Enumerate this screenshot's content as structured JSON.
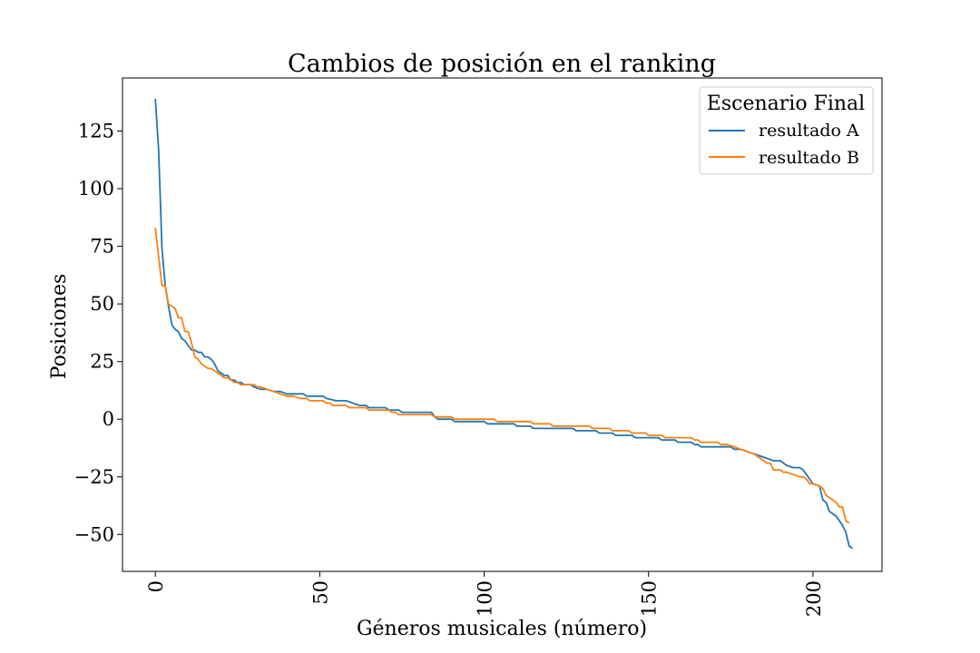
{
  "chart_data": {
    "type": "line",
    "title": "Cambios de posición en el ranking",
    "xlabel": "Géneros musicales (número)",
    "ylabel": "Posiciones",
    "xlim": [
      -10,
      221
    ],
    "ylim": [
      -66,
      148
    ],
    "xticks": [
      0,
      50,
      100,
      150,
      200
    ],
    "yticks": [
      125,
      100,
      75,
      50,
      25,
      0,
      -25,
      -50
    ],
    "x_tick_labels": [
      "0",
      "50",
      "100",
      "150",
      "200"
    ],
    "y_tick_labels": [
      "125",
      "100",
      "75",
      "50",
      "25",
      "0",
      "−25",
      "−50"
    ],
    "grid": false,
    "legend": {
      "title": "Escenario Final",
      "location": "top-right",
      "entries": [
        "resultado A",
        "resultado B"
      ]
    },
    "series": [
      {
        "name": "resultado A",
        "color": "#1f77b4",
        "points": [
          [
            0,
            139
          ],
          [
            1,
            116
          ],
          [
            2,
            74
          ],
          [
            3,
            58
          ],
          [
            4,
            49
          ],
          [
            5,
            41
          ],
          [
            6,
            39
          ],
          [
            7,
            38
          ],
          [
            8,
            35
          ],
          [
            9,
            34
          ],
          [
            10,
            32
          ],
          [
            11,
            30
          ],
          [
            12,
            30
          ],
          [
            13,
            29
          ],
          [
            14,
            29
          ],
          [
            15,
            27
          ],
          [
            16,
            27
          ],
          [
            17,
            26
          ],
          [
            18,
            24
          ],
          [
            19,
            21
          ],
          [
            20,
            20
          ],
          [
            21,
            19
          ],
          [
            22,
            19
          ],
          [
            23,
            17
          ],
          [
            24,
            17
          ],
          [
            25,
            16
          ],
          [
            26,
            16
          ],
          [
            27,
            15
          ],
          [
            28,
            15
          ],
          [
            29,
            15
          ],
          [
            30,
            14
          ],
          [
            32,
            13
          ],
          [
            34,
            13
          ],
          [
            36,
            12
          ],
          [
            38,
            12
          ],
          [
            40,
            11
          ],
          [
            45,
            11
          ],
          [
            46,
            10
          ],
          [
            50,
            10
          ],
          [
            51,
            10
          ],
          [
            52,
            9
          ],
          [
            55,
            8
          ],
          [
            57,
            8
          ],
          [
            58,
            8
          ],
          [
            60,
            7
          ],
          [
            62,
            6
          ],
          [
            64,
            6
          ],
          [
            65,
            5
          ],
          [
            70,
            5
          ],
          [
            71,
            4
          ],
          [
            74,
            4
          ],
          [
            75,
            3
          ],
          [
            84,
            3
          ],
          [
            85,
            1
          ],
          [
            86,
            0
          ],
          [
            90,
            0
          ],
          [
            91,
            -1
          ],
          [
            100,
            -1
          ],
          [
            101,
            -2
          ],
          [
            109,
            -2
          ],
          [
            110,
            -3
          ],
          [
            114,
            -3
          ],
          [
            115,
            -4
          ],
          [
            127,
            -4
          ],
          [
            128,
            -5
          ],
          [
            134,
            -5
          ],
          [
            135,
            -6
          ],
          [
            139,
            -6
          ],
          [
            140,
            -7
          ],
          [
            145,
            -7
          ],
          [
            146,
            -8
          ],
          [
            153,
            -8
          ],
          [
            154,
            -9
          ],
          [
            158,
            -9
          ],
          [
            159,
            -10
          ],
          [
            163,
            -10
          ],
          [
            164,
            -11
          ],
          [
            165,
            -11
          ],
          [
            166,
            -12
          ],
          [
            175,
            -12
          ],
          [
            176,
            -13
          ],
          [
            178,
            -13
          ],
          [
            180,
            -14
          ],
          [
            182,
            -15
          ],
          [
            184,
            -16
          ],
          [
            186,
            -17
          ],
          [
            188,
            -18
          ],
          [
            190,
            -18
          ],
          [
            191,
            -19
          ],
          [
            192,
            -20
          ],
          [
            194,
            -21
          ],
          [
            196,
            -21
          ],
          [
            197,
            -22
          ],
          [
            198,
            -24
          ],
          [
            200,
            -28
          ],
          [
            202,
            -29
          ],
          [
            203,
            -35
          ],
          [
            204,
            -36
          ],
          [
            205,
            -40
          ],
          [
            206,
            -41
          ],
          [
            207,
            -42
          ],
          [
            208,
            -44
          ],
          [
            209,
            -46
          ],
          [
            210,
            -49
          ],
          [
            211,
            -55
          ],
          [
            212,
            -56
          ]
        ]
      },
      {
        "name": "resultado B",
        "color": "#ff7f0e",
        "points": [
          [
            0,
            83
          ],
          [
            1,
            70
          ],
          [
            2,
            58
          ],
          [
            3,
            58
          ],
          [
            4,
            50
          ],
          [
            5,
            49
          ],
          [
            6,
            48
          ],
          [
            7,
            44
          ],
          [
            8,
            44
          ],
          [
            9,
            38
          ],
          [
            10,
            38
          ],
          [
            11,
            33
          ],
          [
            12,
            27
          ],
          [
            13,
            26
          ],
          [
            14,
            24
          ],
          [
            15,
            23
          ],
          [
            16,
            22
          ],
          [
            17,
            22
          ],
          [
            18,
            21
          ],
          [
            19,
            20
          ],
          [
            20,
            19
          ],
          [
            21,
            18
          ],
          [
            22,
            18
          ],
          [
            23,
            17
          ],
          [
            24,
            16
          ],
          [
            25,
            16
          ],
          [
            26,
            15
          ],
          [
            30,
            15
          ],
          [
            31,
            14
          ],
          [
            32,
            14
          ],
          [
            34,
            13
          ],
          [
            36,
            12
          ],
          [
            38,
            11
          ],
          [
            40,
            10
          ],
          [
            42,
            10
          ],
          [
            44,
            9
          ],
          [
            46,
            9
          ],
          [
            47,
            8
          ],
          [
            50,
            8
          ],
          [
            51,
            8
          ],
          [
            52,
            7
          ],
          [
            53,
            7
          ],
          [
            54,
            6
          ],
          [
            58,
            6
          ],
          [
            59,
            5
          ],
          [
            64,
            5
          ],
          [
            65,
            4
          ],
          [
            71,
            4
          ],
          [
            72,
            3
          ],
          [
            73,
            3
          ],
          [
            74,
            2
          ],
          [
            84,
            2
          ],
          [
            85,
            1
          ],
          [
            90,
            1
          ],
          [
            91,
            0
          ],
          [
            103,
            0
          ],
          [
            104,
            -1
          ],
          [
            114,
            -1
          ],
          [
            115,
            -2
          ],
          [
            120,
            -2
          ],
          [
            121,
            -3
          ],
          [
            132,
            -3
          ],
          [
            133,
            -4
          ],
          [
            138,
            -4
          ],
          [
            139,
            -5
          ],
          [
            144,
            -5
          ],
          [
            145,
            -6
          ],
          [
            149,
            -6
          ],
          [
            150,
            -7
          ],
          [
            154,
            -7
          ],
          [
            155,
            -8
          ],
          [
            163,
            -8
          ],
          [
            164,
            -9
          ],
          [
            165,
            -9
          ],
          [
            166,
            -10
          ],
          [
            171,
            -10
          ],
          [
            172,
            -11
          ],
          [
            174,
            -11
          ],
          [
            176,
            -12
          ],
          [
            178,
            -13
          ],
          [
            180,
            -14
          ],
          [
            182,
            -15
          ],
          [
            184,
            -17
          ],
          [
            186,
            -19
          ],
          [
            187,
            -19
          ],
          [
            188,
            -22
          ],
          [
            189,
            -22
          ],
          [
            190,
            -22
          ],
          [
            191,
            -23
          ],
          [
            192,
            -23
          ],
          [
            194,
            -24
          ],
          [
            196,
            -25
          ],
          [
            197,
            -25
          ],
          [
            198,
            -26
          ],
          [
            199,
            -28
          ],
          [
            200,
            -28
          ],
          [
            202,
            -29
          ],
          [
            203,
            -30
          ],
          [
            204,
            -33
          ],
          [
            205,
            -34
          ],
          [
            206,
            -35
          ],
          [
            207,
            -36
          ],
          [
            208,
            -38
          ],
          [
            209,
            -38
          ],
          [
            210,
            -44
          ],
          [
            211,
            -45
          ]
        ]
      }
    ]
  }
}
